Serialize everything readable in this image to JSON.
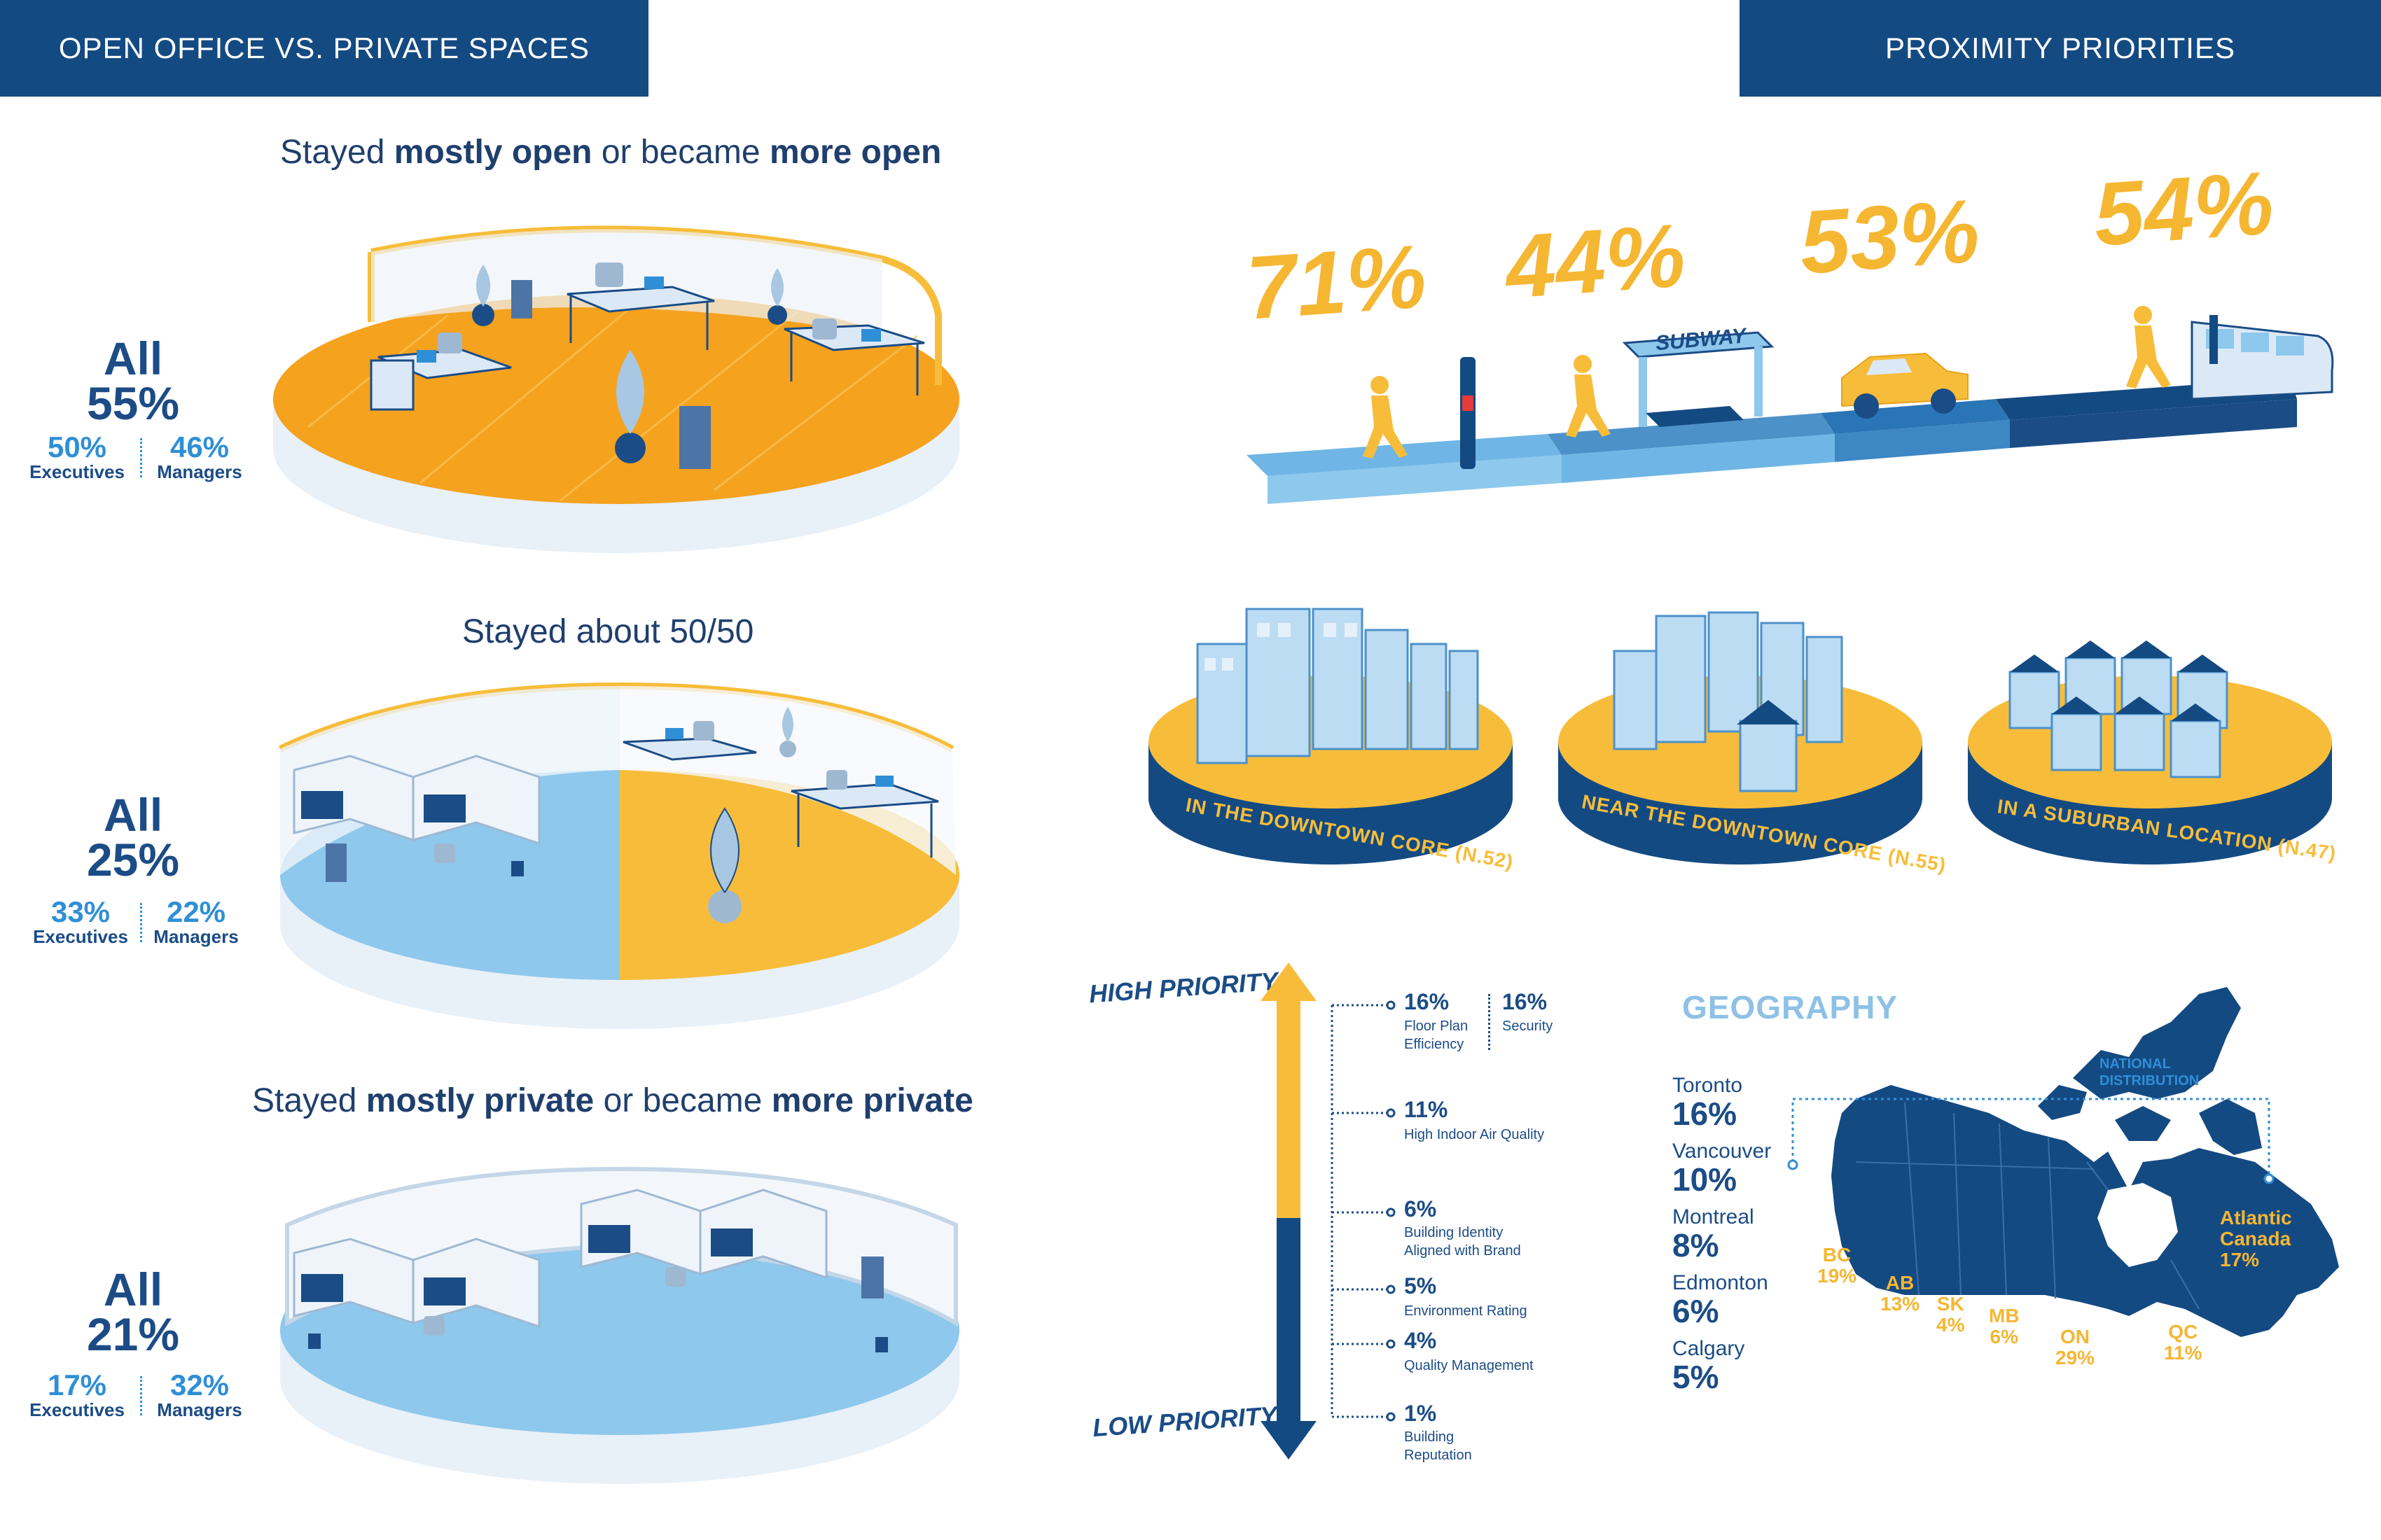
{
  "left_banner": "OPEN OFFICE VS. PRIVATE SPACES",
  "right_banner": "PROXIMITY PRIORITIES",
  "open": {
    "heading_1": "Stayed ",
    "heading_2": "mostly open",
    "heading_3": " or became ",
    "heading_4": "more open",
    "all_label": "All",
    "all_pct": "55%",
    "exec_pct": "50%",
    "exec_label": "Executives",
    "mgr_pct": "46%",
    "mgr_label": "Managers"
  },
  "fifty": {
    "heading": "Stayed about 50/50",
    "all_label": "All",
    "all_pct": "25%",
    "exec_pct": "33%",
    "exec_label": "Executives",
    "mgr_pct": "22%",
    "mgr_label": "Managers"
  },
  "private": {
    "heading_1": "Stayed ",
    "heading_2": "mostly private",
    "heading_3": " or became ",
    "heading_4": "more private",
    "all_label": "All",
    "all_pct": "21%",
    "exec_pct": "17%",
    "exec_label": "Executives",
    "mgr_pct": "32%",
    "mgr_label": "Managers"
  },
  "proximity": {
    "pct_walk": "71%",
    "pct_transit": "44%",
    "pct_car": "53%",
    "pct_train": "54%",
    "subway_sign": "SUBWAY"
  },
  "locations": [
    {
      "label": "IN THE DOWNTOWN CORE (N.52)"
    },
    {
      "label": "NEAR THE DOWNTOWN CORE (N.55)"
    },
    {
      "label": "IN A SUBURBAN LOCATION (N.47)"
    }
  ],
  "priority": {
    "high": "HIGH PRIORITY",
    "low": "LOW PRIORITY",
    "items": [
      {
        "pct": "16%",
        "label_1": "Floor Plan",
        "label_2": "Efficiency"
      },
      {
        "pct": "16%",
        "label_1": "Security",
        "label_2": ""
      },
      {
        "pct": "11%",
        "label_1": "High Indoor Air Quality",
        "label_2": ""
      },
      {
        "pct": "6%",
        "label_1": "Building Identity",
        "label_2": "Aligned with Brand"
      },
      {
        "pct": "5%",
        "label_1": "Environment Rating",
        "label_2": ""
      },
      {
        "pct": "4%",
        "label_1": "Quality Management",
        "label_2": ""
      },
      {
        "pct": "1%",
        "label_1": "Building",
        "label_2": "Reputation"
      }
    ]
  },
  "geography": {
    "title": "GEOGRAPHY",
    "cities": [
      {
        "name": "Toronto",
        "pct": "16%"
      },
      {
        "name": "Vancouver",
        "pct": "10%"
      },
      {
        "name": "Montreal",
        "pct": "8%"
      },
      {
        "name": "Edmonton",
        "pct": "6%"
      },
      {
        "name": "Calgary",
        "pct": "5%"
      }
    ],
    "national_1": "NATIONAL",
    "national_2": "DISTRIBUTION",
    "provinces": {
      "bc": {
        "code": "BC",
        "pct": "19%"
      },
      "ab": {
        "code": "AB",
        "pct": "13%"
      },
      "sk": {
        "code": "SK",
        "pct": "4%"
      },
      "mb": {
        "code": "MB",
        "pct": "6%"
      },
      "on": {
        "code": "ON",
        "pct": "29%"
      },
      "qc": {
        "code": "QC",
        "pct": "11%"
      },
      "atl_1": "Atlantic",
      "atl_2": "Canada",
      "atl_pct": "17%"
    }
  },
  "colors": {
    "navy": "#144a82",
    "orange": "#f5a623",
    "yellow": "#f7bd3a",
    "light_blue": "#8ec8ec",
    "pale": "#e6eef6"
  }
}
